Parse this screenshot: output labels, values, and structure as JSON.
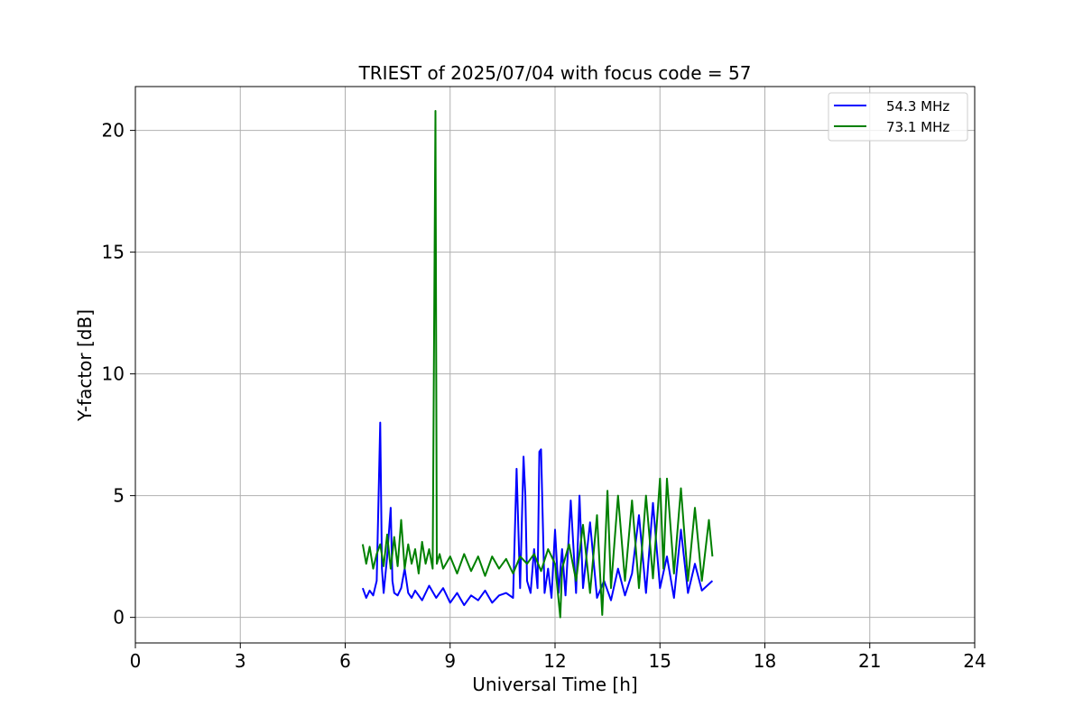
{
  "chart_data": {
    "type": "line",
    "title": "TRIEST of 2025/07/04 with focus code = 57",
    "xlabel": "Universal Time [h]",
    "ylabel": "Y-factor [dB]",
    "xlim": [
      0,
      24
    ],
    "ylim": [
      -1.05,
      21.8
    ],
    "xticks": [
      0,
      3,
      6,
      9,
      12,
      15,
      18,
      21,
      24
    ],
    "yticks": [
      0,
      5,
      10,
      15,
      20
    ],
    "grid": true,
    "legend_position": "upper right",
    "series": [
      {
        "name": "54.3 MHz",
        "color": "#0000ff",
        "x": [
          6.5,
          6.6,
          6.7,
          6.8,
          6.9,
          7.0,
          7.05,
          7.1,
          7.2,
          7.3,
          7.35,
          7.4,
          7.5,
          7.6,
          7.7,
          7.8,
          7.9,
          8.0,
          8.2,
          8.4,
          8.6,
          8.8,
          9.0,
          9.2,
          9.4,
          9.6,
          9.8,
          10.0,
          10.2,
          10.4,
          10.6,
          10.8,
          10.9,
          11.0,
          11.05,
          11.1,
          11.15,
          11.2,
          11.3,
          11.4,
          11.5,
          11.55,
          11.6,
          11.65,
          11.7,
          11.8,
          11.9,
          12.0,
          12.1,
          12.2,
          12.3,
          12.45,
          12.6,
          12.7,
          12.8,
          13.0,
          13.2,
          13.4,
          13.6,
          13.8,
          14.0,
          14.2,
          14.4,
          14.6,
          14.8,
          15.0,
          15.2,
          15.4,
          15.6,
          15.8,
          16.0,
          16.2,
          16.5
        ],
        "y": [
          1.2,
          0.8,
          1.1,
          0.9,
          1.5,
          8.0,
          2.0,
          1.0,
          2.5,
          4.5,
          1.5,
          1.0,
          0.9,
          1.2,
          2.0,
          1.0,
          0.8,
          1.1,
          0.7,
          1.3,
          0.8,
          1.2,
          0.6,
          1.0,
          0.5,
          0.9,
          0.7,
          1.1,
          0.6,
          0.9,
          1.0,
          0.8,
          6.1,
          1.2,
          3.9,
          6.6,
          5.0,
          1.5,
          1.0,
          2.8,
          1.2,
          6.8,
          6.9,
          4.0,
          1.0,
          2.0,
          0.8,
          3.6,
          1.0,
          2.8,
          0.9,
          4.8,
          1.0,
          5.0,
          1.2,
          3.9,
          0.8,
          1.5,
          0.7,
          2.0,
          0.9,
          1.8,
          4.2,
          1.0,
          4.7,
          1.2,
          2.5,
          0.8,
          3.6,
          1.0,
          2.2,
          1.1,
          1.5
        ]
      },
      {
        "name": "73.1 MHz",
        "color": "#008000",
        "x": [
          6.5,
          6.6,
          6.7,
          6.8,
          6.9,
          7.0,
          7.1,
          7.2,
          7.3,
          7.4,
          7.5,
          7.6,
          7.7,
          7.8,
          7.9,
          8.0,
          8.1,
          8.2,
          8.3,
          8.4,
          8.5,
          8.58,
          8.62,
          8.7,
          8.8,
          9.0,
          9.2,
          9.4,
          9.6,
          9.8,
          10.0,
          10.2,
          10.4,
          10.6,
          10.8,
          11.0,
          11.2,
          11.4,
          11.6,
          11.8,
          12.0,
          12.15,
          12.2,
          12.4,
          12.6,
          12.8,
          13.0,
          13.2,
          13.35,
          13.5,
          13.6,
          13.8,
          14.0,
          14.2,
          14.4,
          14.6,
          14.8,
          15.0,
          15.1,
          15.2,
          15.4,
          15.6,
          15.8,
          16.0,
          16.2,
          16.4,
          16.5
        ],
        "y": [
          3.0,
          2.2,
          2.9,
          2.0,
          2.6,
          3.0,
          2.1,
          3.4,
          2.0,
          3.3,
          2.1,
          4.0,
          2.0,
          3.0,
          2.2,
          2.8,
          1.8,
          3.1,
          2.2,
          2.8,
          2.0,
          20.8,
          2.2,
          2.6,
          2.0,
          2.5,
          1.8,
          2.6,
          1.9,
          2.5,
          1.7,
          2.5,
          2.0,
          2.4,
          1.8,
          2.5,
          2.2,
          2.6,
          1.9,
          2.8,
          2.2,
          0.0,
          2.0,
          3.0,
          1.5,
          3.8,
          1.0,
          4.2,
          0.1,
          5.2,
          1.2,
          5.0,
          1.5,
          4.8,
          1.2,
          5.0,
          1.6,
          5.7,
          2.0,
          5.7,
          1.8,
          5.3,
          1.5,
          4.5,
          1.5,
          4.0,
          2.5
        ]
      }
    ]
  }
}
